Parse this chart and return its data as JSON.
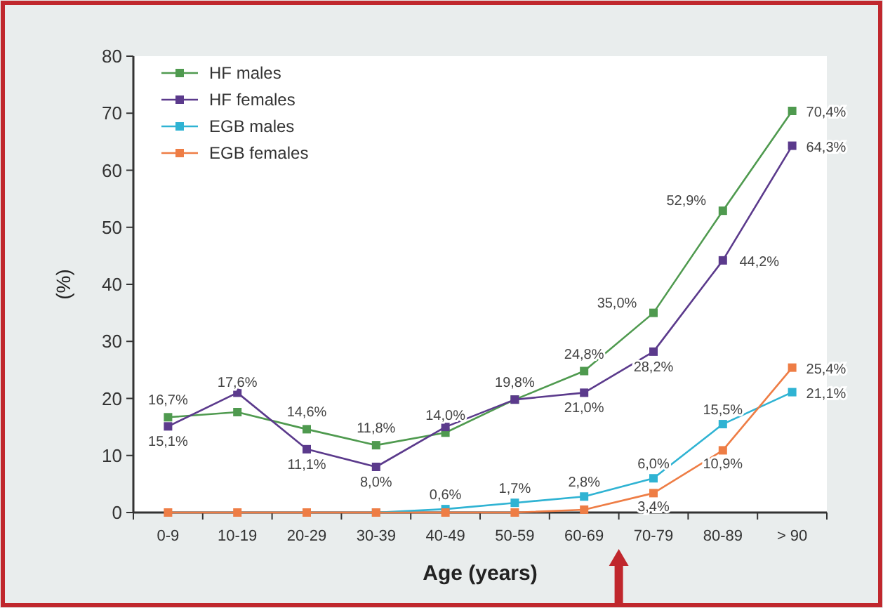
{
  "chart_data": {
    "type": "line",
    "xlabel": "Age (years)",
    "ylabel": "(%)",
    "categories": [
      "0-9",
      "10-19",
      "20-29",
      "30-39",
      "40-49",
      "50-59",
      "60-69",
      "70-79",
      "80-89",
      "> 90"
    ],
    "ylim": [
      0,
      80
    ],
    "yticks": [
      0,
      10,
      20,
      30,
      40,
      50,
      60,
      70,
      80
    ],
    "grid": false,
    "legend": "top left",
    "marker": "square",
    "line_style": "solid",
    "series": [
      {
        "name": "HF males",
        "color": "#4f9a4f",
        "values": [
          16.7,
          17.6,
          14.6,
          11.8,
          14.0,
          19.8,
          24.8,
          35.0,
          52.9,
          70.4
        ],
        "value_labels": [
          "16,7%",
          "17,6%",
          "14,6%",
          "11,8%",
          "14,0%",
          "19,8%",
          "24,8%",
          "35,0%",
          "52,9%",
          "70,4%"
        ]
      },
      {
        "name": "HF females",
        "color": "#5b3a8c",
        "values": [
          15.1,
          21,
          11.1,
          8.0,
          15,
          19.8,
          21.0,
          28.2,
          44.2,
          64.3
        ],
        "value_labels": [
          "15,1%",
          null,
          "11,1%",
          "8,0%",
          null,
          null,
          "21,0%",
          "28,2%",
          "44,2%",
          "64,3%"
        ]
      },
      {
        "name": "EGB males",
        "color": "#2fb3d3",
        "values": [
          null,
          null,
          null,
          0,
          0.6,
          1.7,
          2.8,
          6.0,
          15.5,
          21.1
        ],
        "value_labels": [
          null,
          null,
          null,
          null,
          "0,6%",
          "1,7%",
          "2,8%",
          "6,0%",
          "15,5%",
          "21,1%"
        ]
      },
      {
        "name": "EGB females",
        "color": "#ee7d45",
        "values": [
          0,
          0,
          0,
          0,
          0,
          0,
          0.5,
          3.4,
          10.9,
          25.4
        ],
        "value_labels": [
          null,
          null,
          null,
          null,
          null,
          null,
          null,
          "3,4%",
          "10,9%",
          "25,4%"
        ]
      }
    ]
  }
}
